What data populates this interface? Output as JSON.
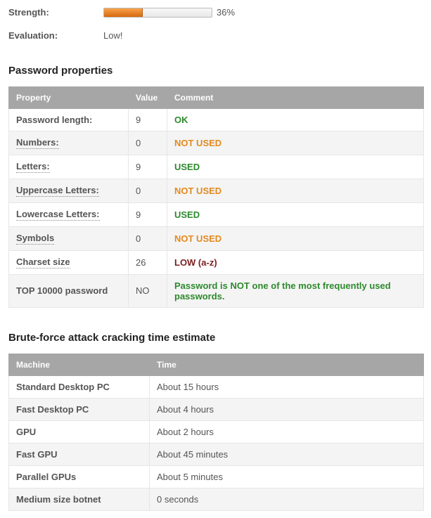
{
  "strength": {
    "label": "Strength:",
    "percent": 36,
    "percent_text": "36%",
    "bar_fill_color_top": "#f7a24a",
    "bar_fill_color_bottom": "#d6690f",
    "bar_bg_top": "#f8f8f8",
    "bar_bg_bottom": "#e8e8e8",
    "bar_border": "#bbbbbb"
  },
  "evaluation": {
    "label": "Evaluation:",
    "value": "Low!"
  },
  "sections": {
    "properties_title": "Password properties",
    "crack_title": "Brute-force attack cracking time estimate"
  },
  "properties_table": {
    "headers": {
      "property": "Property",
      "value": "Value",
      "comment": "Comment"
    },
    "rows": [
      {
        "property": "Password length:",
        "dotted": false,
        "value": "9",
        "comment": "OK",
        "comment_style": "ok"
      },
      {
        "property": "Numbers:",
        "dotted": true,
        "value": "0",
        "comment": "NOT USED",
        "comment_style": "warn"
      },
      {
        "property": "Letters:",
        "dotted": true,
        "value": "9",
        "comment": "USED",
        "comment_style": "ok"
      },
      {
        "property": "Uppercase Letters:",
        "dotted": true,
        "value": "0",
        "comment": "NOT USED",
        "comment_style": "warn"
      },
      {
        "property": "Lowercase Letters:",
        "dotted": true,
        "value": "9",
        "comment": "USED",
        "comment_style": "ok"
      },
      {
        "property": "Symbols",
        "dotted": true,
        "value": "0",
        "comment": "NOT USED",
        "comment_style": "warn"
      },
      {
        "property": "Charset size",
        "dotted": true,
        "value": "26",
        "comment": "LOW (a-z)",
        "comment_style": "bad"
      },
      {
        "property": "TOP 10000 password",
        "dotted": false,
        "value": "NO",
        "comment": "Password is NOT one of the most frequently used passwords.",
        "comment_style": "safe"
      }
    ],
    "comment_colors": {
      "ok": "#2d8a2d",
      "warn": "#e48a1f",
      "bad": "#7a1f1f",
      "safe": "#2d8a2d"
    }
  },
  "crack_table": {
    "headers": {
      "machine": "Machine",
      "time": "Time"
    },
    "rows": [
      {
        "machine": "Standard Desktop PC",
        "time": "About 15 hours"
      },
      {
        "machine": "Fast Desktop PC",
        "time": "About 4 hours"
      },
      {
        "machine": "GPU",
        "time": "About 2 hours"
      },
      {
        "machine": "Fast GPU",
        "time": "About 45 minutes"
      },
      {
        "machine": "Parallel GPUs",
        "time": "About 5 minutes"
      },
      {
        "machine": "Medium size botnet",
        "time": "0 seconds"
      }
    ]
  }
}
